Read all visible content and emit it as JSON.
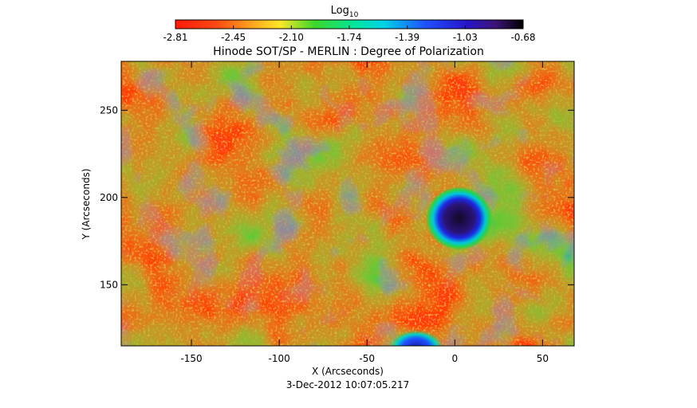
{
  "colorbar": {
    "title": "Log",
    "title_subscript": "10",
    "tick_labels": [
      "-2.81",
      "-2.45",
      "-2.10",
      "-1.74",
      "-1.39",
      "-1.03",
      "-0.68"
    ],
    "range": [
      -2.81,
      -0.68
    ],
    "colormap": "rainbow (red → yellow → green → cyan → blue → violet/black)"
  },
  "plot": {
    "title": "Hinode SOT/SP - MERLIN : Degree of Polarization",
    "x_label": "X (Arcseconds)",
    "y_label": "Y (Arcseconds)",
    "x_ticks": [
      "-150",
      "-100",
      "-50",
      "0",
      "50"
    ],
    "y_ticks": [
      "150",
      "200",
      "250"
    ],
    "x_range": [
      -190,
      68
    ],
    "y_range": [
      115,
      278
    ],
    "timestamp": "3-Dec-2012 10:07:05.217"
  },
  "chart_data": {
    "type": "heatmap",
    "title": "Hinode SOT/SP - MERLIN : Degree of Polarization",
    "xlabel": "X (Arcseconds)",
    "ylabel": "Y (Arcseconds)",
    "xlim": [
      -190,
      68
    ],
    "ylim": [
      115,
      278
    ],
    "colorbar_label": "Log10",
    "colorbar_range": [
      -2.81,
      -0.68
    ],
    "colors": {
      "background_low": "#ff3a0a",
      "mid_green": "#19d23c",
      "high_blue": "#1428e6",
      "peak_dark": "#1a0a38"
    },
    "features": [
      {
        "name": "sunspot",
        "x": 3,
        "y": 187,
        "radius_arcsec": 8
      },
      {
        "name": "bottom-partial-feature",
        "x": -22,
        "y": 115,
        "radius_arcsec": 10
      }
    ]
  }
}
